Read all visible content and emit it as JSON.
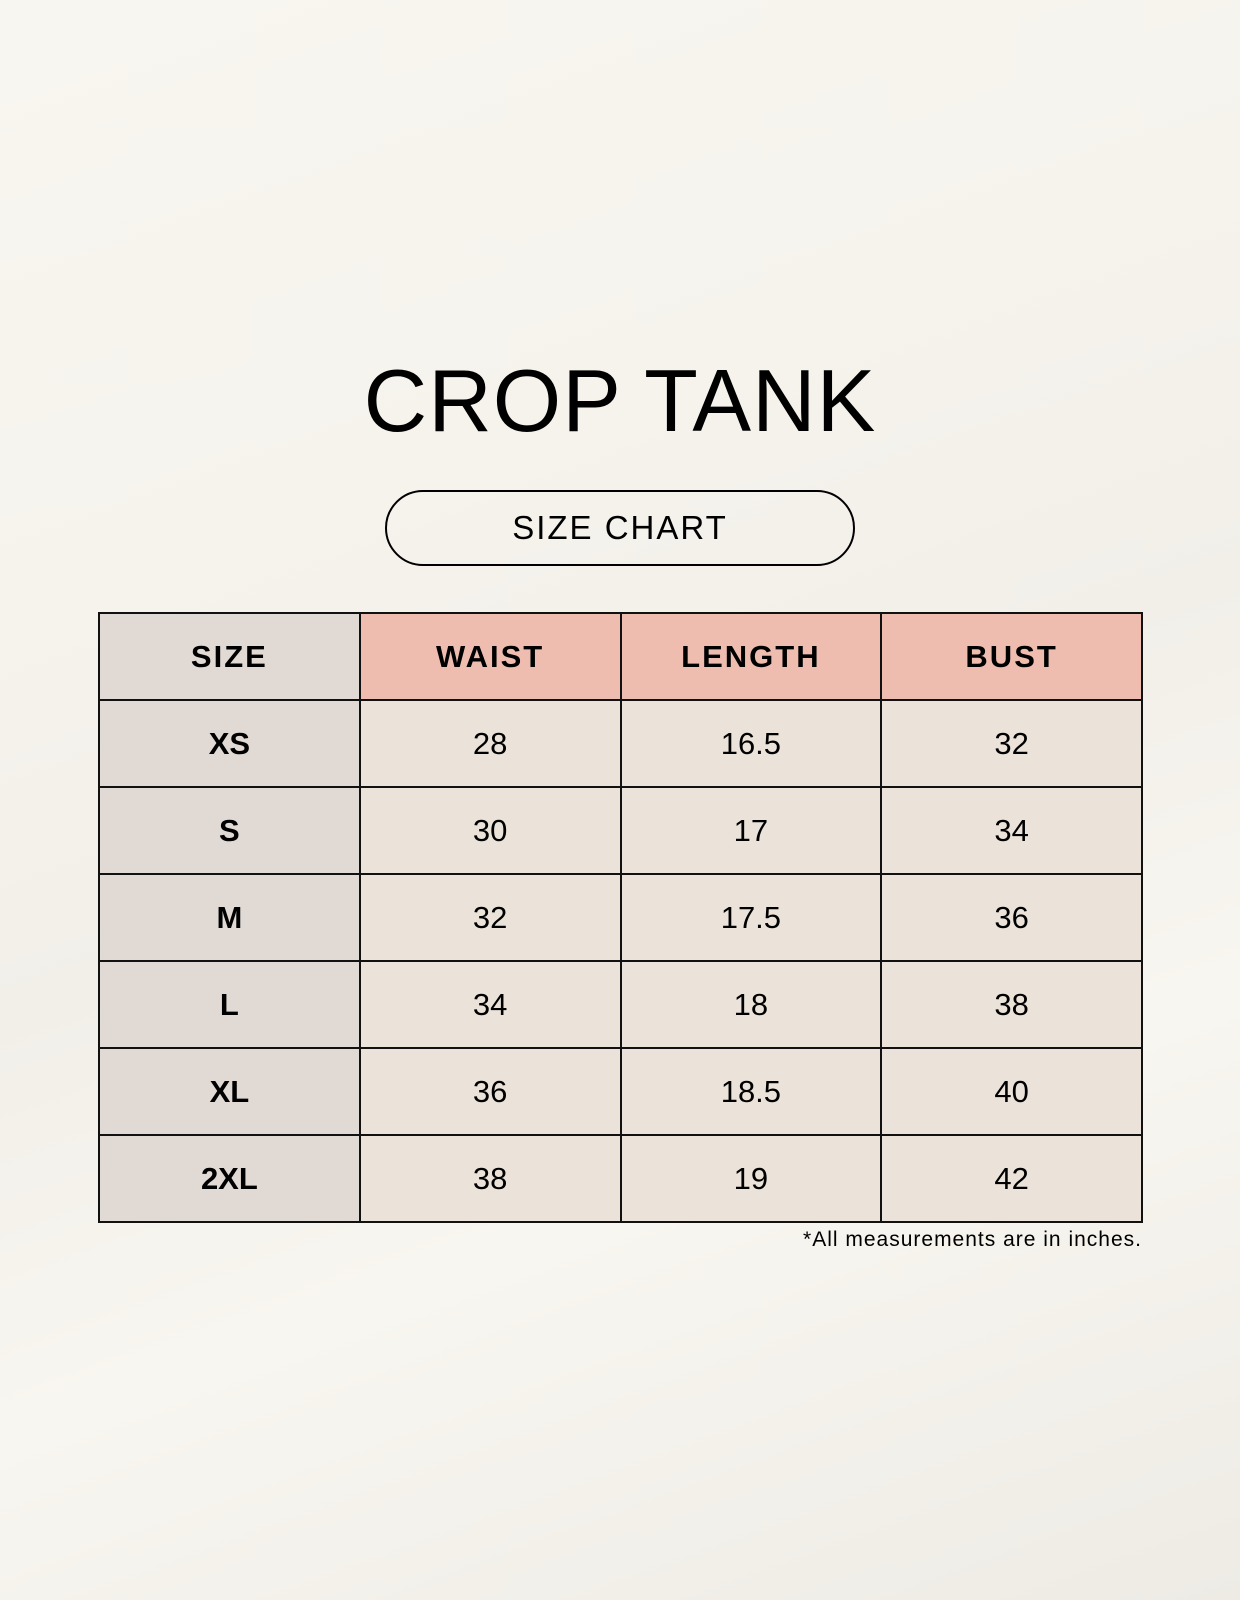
{
  "title": "CROP TANK",
  "subtitle": "SIZE CHART",
  "table": {
    "headers": [
      "SIZE",
      "WAIST",
      "LENGTH",
      "BUST"
    ],
    "rows": [
      [
        "XS",
        "28",
        "16.5",
        "32"
      ],
      [
        "S",
        "30",
        "17",
        "34"
      ],
      [
        "M",
        "32",
        "17.5",
        "36"
      ],
      [
        "L",
        "34",
        "18",
        "38"
      ],
      [
        "XL",
        "36",
        "18.5",
        "40"
      ],
      [
        "2XL",
        "38",
        "19",
        "42"
      ]
    ]
  },
  "footnote": "*All measurements are in inches.",
  "colors": {
    "header_accent": "#eebdb0",
    "size_column": "#e0d9d4",
    "cell": "#ebe3d9"
  }
}
